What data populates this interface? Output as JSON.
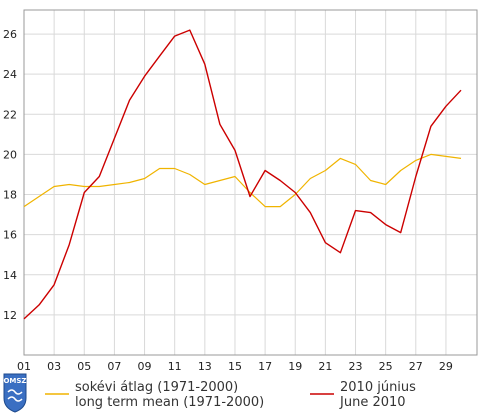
{
  "chart_data": {
    "type": "line",
    "x": [
      1,
      2,
      3,
      4,
      5,
      6,
      7,
      8,
      9,
      10,
      11,
      12,
      13,
      14,
      15,
      16,
      17,
      18,
      19,
      20,
      21,
      22,
      23,
      24,
      25,
      26,
      27,
      28,
      29,
      30
    ],
    "x_tick_labels": [
      "01",
      "03",
      "05",
      "07",
      "09",
      "11",
      "13",
      "15",
      "17",
      "19",
      "21",
      "23",
      "25",
      "27",
      "29"
    ],
    "x_tick_positions": [
      1,
      3,
      5,
      7,
      9,
      11,
      13,
      15,
      17,
      19,
      21,
      23,
      25,
      27,
      29
    ],
    "y_ticks": [
      12,
      14,
      16,
      18,
      20,
      22,
      24,
      26
    ],
    "ylim": [
      10,
      27.2
    ],
    "xlim": [
      1,
      30
    ],
    "grid": "horizontal and vertical",
    "series": [
      {
        "name": "sokévi átlag (1971-2000) / long term mean (1971-2000)",
        "color": "#f0b400",
        "values": [
          17.4,
          17.9,
          18.4,
          18.5,
          18.4,
          18.4,
          18.5,
          18.6,
          18.8,
          19.3,
          19.3,
          19.0,
          18.5,
          18.7,
          18.9,
          18.1,
          17.4,
          17.4,
          18.0,
          18.8,
          19.2,
          19.8,
          19.5,
          18.7,
          18.5,
          19.2,
          19.7,
          20.0,
          19.9,
          19.8
        ]
      },
      {
        "name": "2010 június / June 2010",
        "color": "#cc0000",
        "values": [
          11.8,
          12.5,
          13.5,
          15.5,
          18.1,
          18.9,
          20.8,
          22.7,
          23.9,
          24.9,
          25.9,
          26.2,
          24.5,
          21.5,
          20.2,
          17.9,
          19.2,
          18.7,
          18.1,
          17.1,
          15.6,
          15.1,
          17.2,
          17.1,
          16.5,
          16.1,
          18.9,
          21.4,
          22.4,
          23.2
        ]
      }
    ]
  },
  "legend": {
    "mean_label_hu": "sokévi átlag (1971-2000)",
    "mean_label_en": "long term mean (1971-2000)",
    "june_label_hu": "2010 június",
    "june_label_en": "June 2010"
  },
  "logo": {
    "text": "OMSZ"
  }
}
